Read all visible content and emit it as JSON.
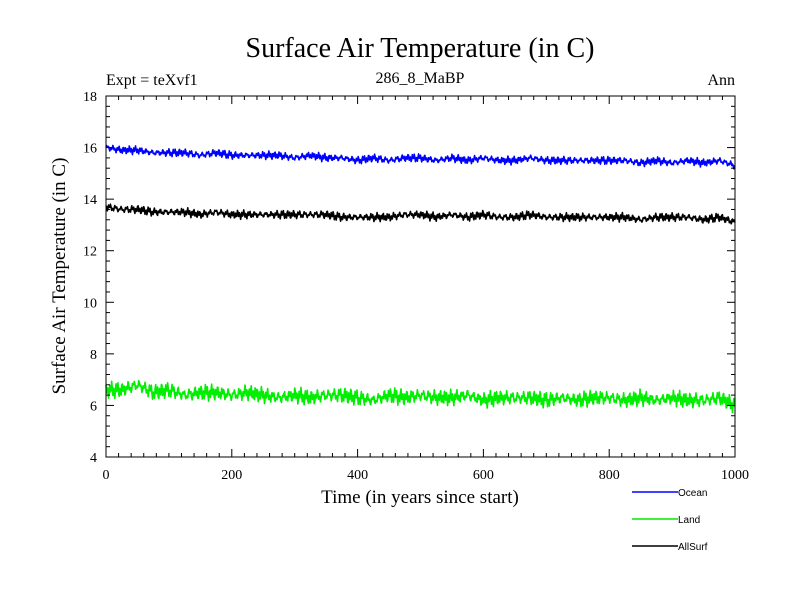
{
  "chart_data": {
    "type": "line",
    "title": "Surface Air Temperature (in C)",
    "subtitle_left": "Expt = teXvf1",
    "subtitle_center": "286_8_MaBP",
    "subtitle_right": "Ann",
    "xlabel": "Time (in years since start)",
    "ylabel": "Surface Air Temperature (in C)",
    "xlim": [
      0,
      1000
    ],
    "ylim": [
      4,
      18
    ],
    "xticks": [
      0,
      200,
      400,
      600,
      800,
      1000
    ],
    "yticks": [
      4,
      6,
      8,
      10,
      12,
      14,
      16,
      18
    ],
    "grid": false,
    "legend_position": "bottom-right",
    "series": [
      {
        "name": "Ocean",
        "color": "#0000ff",
        "x": [
          0,
          25,
          50,
          75,
          100,
          125,
          150,
          175,
          200,
          225,
          250,
          275,
          300,
          325,
          350,
          375,
          400,
          425,
          450,
          475,
          500,
          525,
          550,
          575,
          600,
          625,
          650,
          675,
          700,
          725,
          750,
          775,
          800,
          825,
          850,
          875,
          900,
          925,
          950,
          975,
          1000
        ],
        "y": [
          16.0,
          15.9,
          15.9,
          15.8,
          15.8,
          15.8,
          15.7,
          15.8,
          15.7,
          15.7,
          15.7,
          15.7,
          15.6,
          15.7,
          15.6,
          15.6,
          15.5,
          15.6,
          15.5,
          15.6,
          15.6,
          15.5,
          15.6,
          15.5,
          15.6,
          15.5,
          15.5,
          15.6,
          15.5,
          15.5,
          15.5,
          15.5,
          15.5,
          15.5,
          15.4,
          15.5,
          15.4,
          15.5,
          15.4,
          15.5,
          15.3
        ]
      },
      {
        "name": "Land",
        "color": "#00ee00",
        "x": [
          0,
          25,
          50,
          75,
          100,
          125,
          150,
          175,
          200,
          225,
          250,
          275,
          300,
          325,
          350,
          375,
          400,
          425,
          450,
          475,
          500,
          525,
          550,
          575,
          600,
          625,
          650,
          675,
          700,
          725,
          750,
          775,
          800,
          825,
          850,
          875,
          900,
          925,
          950,
          975,
          1000
        ],
        "y": [
          6.6,
          6.6,
          6.8,
          6.5,
          6.6,
          6.4,
          6.5,
          6.5,
          6.4,
          6.5,
          6.4,
          6.3,
          6.4,
          6.3,
          6.4,
          6.4,
          6.3,
          6.2,
          6.4,
          6.3,
          6.4,
          6.3,
          6.3,
          6.4,
          6.2,
          6.3,
          6.3,
          6.3,
          6.2,
          6.3,
          6.2,
          6.3,
          6.3,
          6.2,
          6.3,
          6.2,
          6.3,
          6.2,
          6.2,
          6.3,
          6.0
        ]
      },
      {
        "name": "AllSurf",
        "color": "#000000",
        "x": [
          0,
          25,
          50,
          75,
          100,
          125,
          150,
          175,
          200,
          225,
          250,
          275,
          300,
          325,
          350,
          375,
          400,
          425,
          450,
          475,
          500,
          525,
          550,
          575,
          600,
          625,
          650,
          675,
          700,
          725,
          750,
          775,
          800,
          825,
          850,
          875,
          900,
          925,
          950,
          975,
          1000
        ],
        "y": [
          13.7,
          13.6,
          13.6,
          13.5,
          13.5,
          13.5,
          13.4,
          13.5,
          13.4,
          13.4,
          13.4,
          13.4,
          13.4,
          13.4,
          13.4,
          13.3,
          13.3,
          13.3,
          13.3,
          13.4,
          13.4,
          13.3,
          13.4,
          13.3,
          13.4,
          13.3,
          13.3,
          13.4,
          13.3,
          13.3,
          13.3,
          13.3,
          13.3,
          13.3,
          13.2,
          13.3,
          13.3,
          13.3,
          13.2,
          13.3,
          13.1
        ]
      }
    ]
  }
}
